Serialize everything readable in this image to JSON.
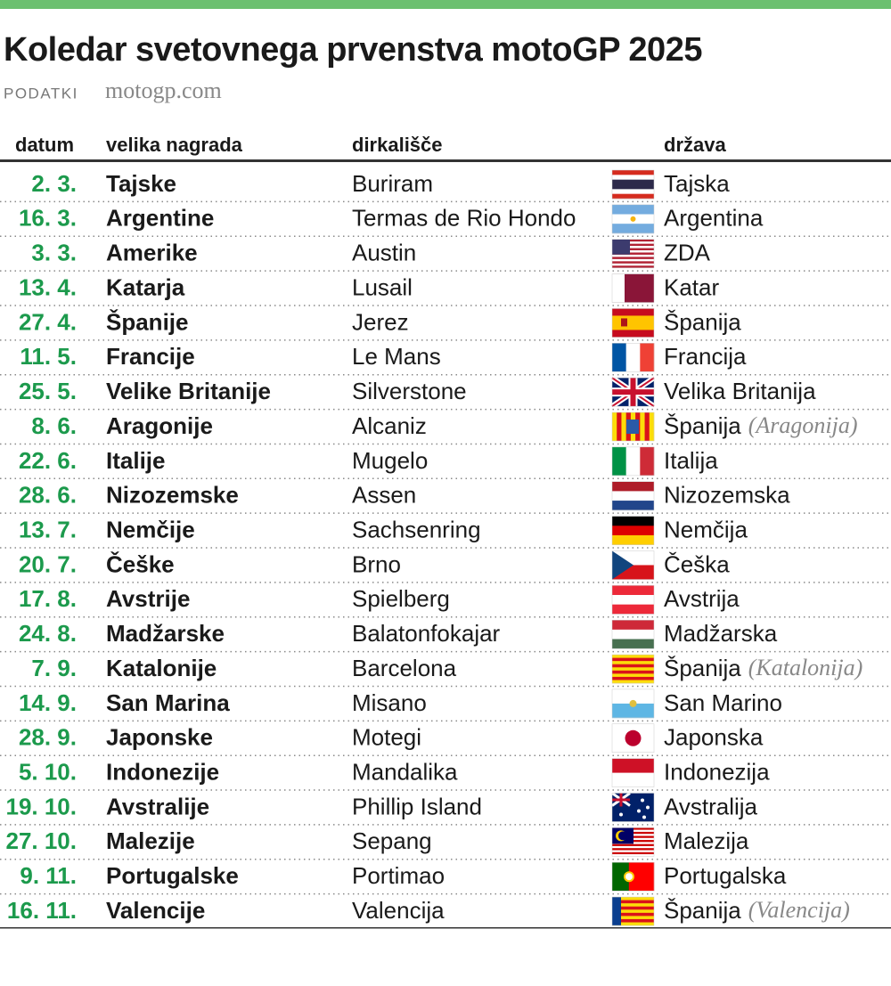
{
  "header": {
    "title": "Koledar svetovnega prvenstva motoGP 2025",
    "source_label": "PODATKI",
    "source": "motogp.com"
  },
  "table": {
    "columns": [
      "datum",
      "velika nagrada",
      "dirkališče",
      "država"
    ],
    "rows": [
      {
        "date": "2. 3.",
        "grand_prix": "Tajske",
        "circuit": "Buriram",
        "country": "Tajska"
      },
      {
        "date": "16. 3.",
        "grand_prix": "Argentine",
        "circuit": "Termas de Rio Hondo",
        "country": "Argentina"
      },
      {
        "date": "3. 3.",
        "grand_prix": "Amerike",
        "circuit": "Austin",
        "country": "ZDA"
      },
      {
        "date": "13. 4.",
        "grand_prix": "Katarja",
        "circuit": "Lusail",
        "country": "Katar"
      },
      {
        "date": "27. 4.",
        "grand_prix": "Španije",
        "circuit": "Jerez",
        "country": "Španija"
      },
      {
        "date": "11. 5.",
        "grand_prix": "Francije",
        "circuit": "Le Mans",
        "country": "Francija"
      },
      {
        "date": "25. 5.",
        "grand_prix": "Velike Britanije",
        "circuit": "Silverstone",
        "country": "Velika Britanija"
      },
      {
        "date": "8. 6.",
        "grand_prix": "Aragonije",
        "circuit": "Alcaniz",
        "country": "Španija",
        "region": "(Aragonija)"
      },
      {
        "date": "22. 6.",
        "grand_prix": "Italije",
        "circuit": "Mugelo",
        "country": "Italija"
      },
      {
        "date": "28. 6.",
        "grand_prix": "Nizozemske",
        "circuit": "Assen",
        "country": "Nizozemska"
      },
      {
        "date": "13. 7.",
        "grand_prix": "Nemčije",
        "circuit": "Sachsenring",
        "country": "Nemčija"
      },
      {
        "date": "20. 7.",
        "grand_prix": "Češke",
        "circuit": "Brno",
        "country": "Češka"
      },
      {
        "date": "17. 8.",
        "grand_prix": "Avstrije",
        "circuit": "Spielberg",
        "country": "Avstrija"
      },
      {
        "date": "24. 8.",
        "grand_prix": "Madžarske",
        "circuit": "Balatonfokajar",
        "country": "Madžarska"
      },
      {
        "date": "7. 9.",
        "grand_prix": "Katalonije",
        "circuit": "Barcelona",
        "country": "Španija",
        "region": "(Katalonija)"
      },
      {
        "date": "14. 9.",
        "grand_prix": "San Marina",
        "circuit": "Misano",
        "country": "San Marino"
      },
      {
        "date": "28. 9.",
        "grand_prix": "Japonske",
        "circuit": "Motegi",
        "country": "Japonska"
      },
      {
        "date": "5. 10.",
        "grand_prix": "Indonezije",
        "circuit": "Mandalika",
        "country": "Indonezija"
      },
      {
        "date": "19. 10.",
        "grand_prix": "Avstralije",
        "circuit": "Phillip Island",
        "country": "Avstralija"
      },
      {
        "date": "27. 10.",
        "grand_prix": "Malezije",
        "circuit": "Sepang",
        "country": "Malezija"
      },
      {
        "date": "9. 11.",
        "grand_prix": "Portugalske",
        "circuit": "Portimao",
        "country": "Portugalska"
      },
      {
        "date": "16. 11.",
        "grand_prix": "Valencije",
        "circuit": "Valencija",
        "country": "Španija",
        "region": "(Valencija)"
      }
    ]
  }
}
